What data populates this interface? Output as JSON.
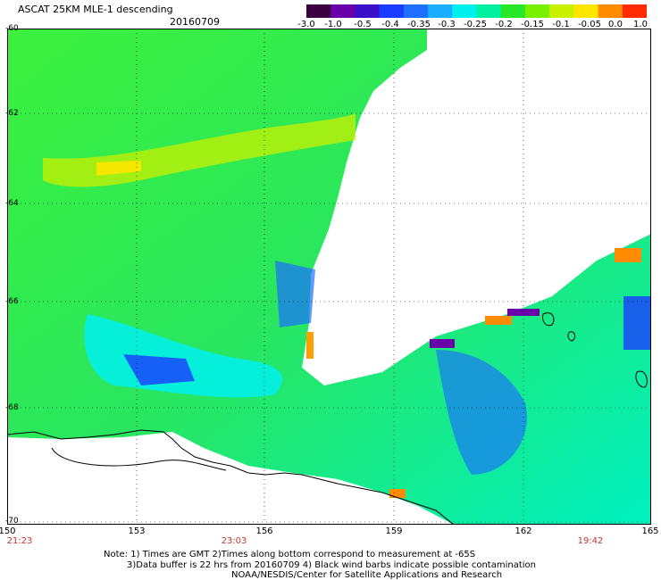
{
  "header": {
    "title": "ASCAT 25KM MLE-1 descending",
    "date": "20160709"
  },
  "colorbar": {
    "labels": [
      "-3.0",
      "-1.0",
      "-0.5",
      "-0.4",
      "-0.35",
      "-0.3",
      "-0.25",
      "-0.2",
      "-0.15",
      "-0.1",
      "-0.05",
      "0.0",
      "1.0"
    ],
    "colors": [
      "#3a0040",
      "#6a00a8",
      "#3a10c8",
      "#1a3cff",
      "#1f6fff",
      "#1ab0ff",
      "#00f0f0",
      "#00f0a0",
      "#28e628",
      "#78f000",
      "#c8f000",
      "#ffe600",
      "#ff8c00",
      "#ff2a00"
    ]
  },
  "axes": {
    "lat_labels": [
      "-60",
      "-62",
      "-64",
      "-66",
      "-68",
      "-70"
    ],
    "lon_labels": [
      "150",
      "153",
      "156",
      "159",
      "162",
      "165"
    ],
    "time_labels": [
      "21:23",
      "23:03",
      "19:42"
    ]
  },
  "notes": {
    "line1": "Note: 1) Times are GMT 2)Times along bottom correspond to measurement at -65S",
    "line2": "3)Data buffer is 22 hrs from 20160709 4) Black wind barbs indicate possible contamination",
    "line3": "NOAA/NESDIS/Center for Satellite Applications and Research"
  }
}
